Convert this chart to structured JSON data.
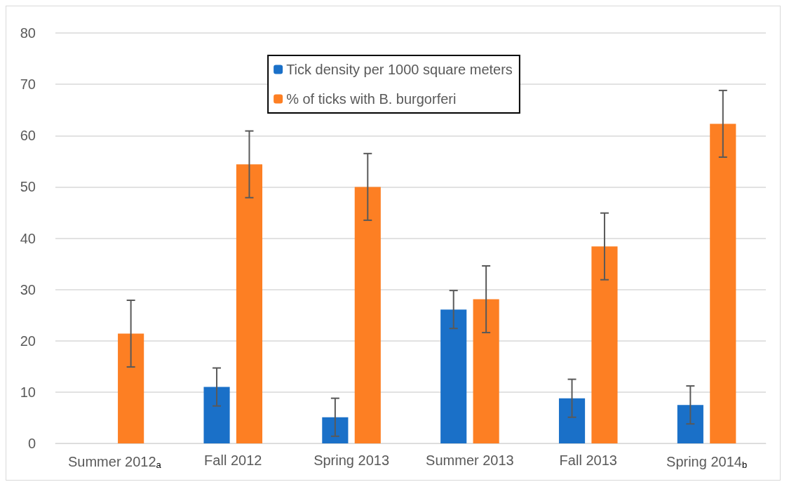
{
  "chart_data": {
    "type": "bar",
    "categories": [
      "Summer 2012$_{a}$",
      "Fall 2012",
      "Spring 2013",
      "Summer 2013",
      "Fall 2013",
      "Spring 2014$_{b}$"
    ],
    "series": [
      {
        "name": "Tick density per 1000 square meters",
        "color": "#1a70c8",
        "values": [
          null,
          11.0,
          5.1,
          26.1,
          8.8,
          7.5
        ],
        "errors": [
          null,
          3.7,
          3.7,
          3.7,
          3.7,
          3.7
        ]
      },
      {
        "name": "% of ticks with B. burgorferi",
        "color": "#fd7f23",
        "values": [
          21.4,
          54.4,
          50.0,
          28.1,
          38.4,
          62.3
        ],
        "errors": [
          6.5,
          6.5,
          6.5,
          6.5,
          6.5,
          6.5
        ]
      }
    ],
    "ylim": [
      0,
      80
    ],
    "yticks": [
      0,
      10,
      20,
      30,
      40,
      50,
      60,
      70,
      80
    ],
    "grid": "y",
    "legend": "top"
  }
}
